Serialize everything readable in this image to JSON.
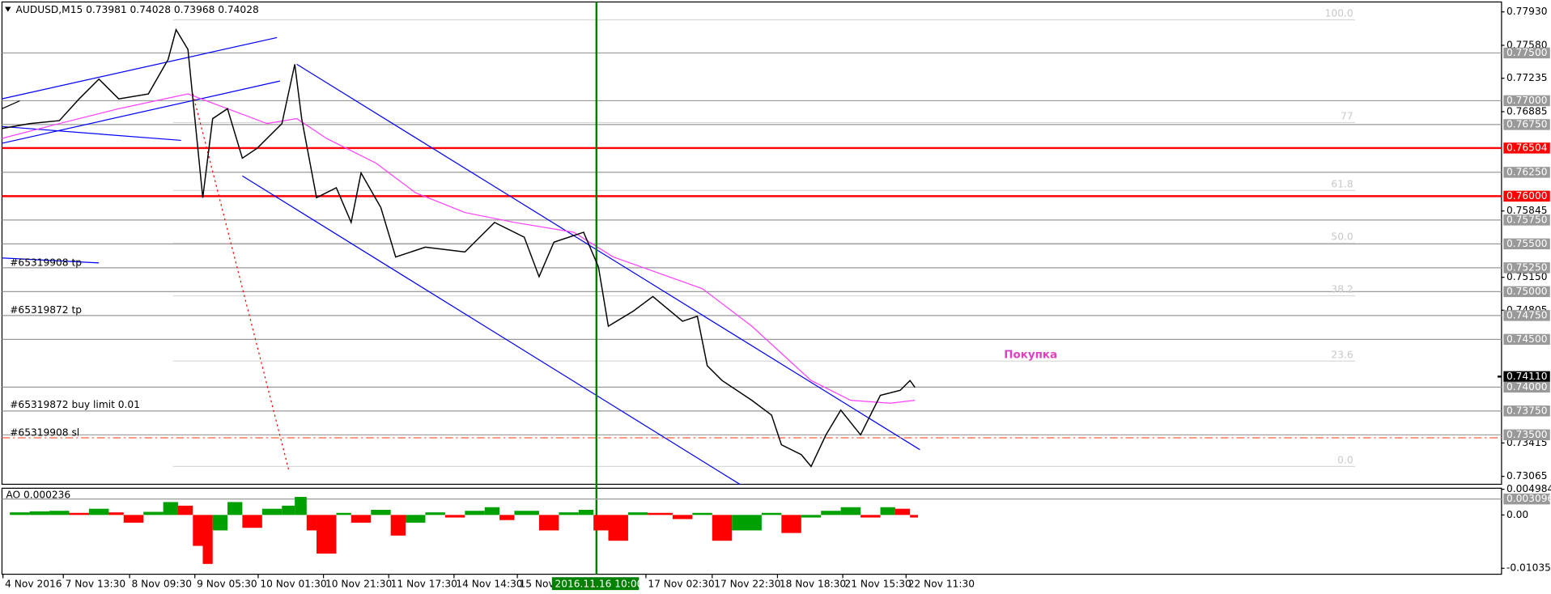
{
  "header": {
    "symbol": "AUDUSD,M15",
    "ohlc": [
      0.73981,
      0.74028,
      0.73968,
      0.74028
    ]
  },
  "price_axis": {
    "ylim": [
      0.72982,
      0.78034
    ],
    "ticks": [
      {
        "value": 0.7793,
        "label": "0.77930"
      },
      {
        "value": 0.7758,
        "label": "0.77580"
      },
      0.77235,
      0.76885,
      0.75845,
      {
        "value": 0.7515,
        "label": "0.75150"
      },
      0.74805,
      0.73415,
      0.73065
    ],
    "current": {
      "value": 0.7411,
      "label": "0.74110"
    }
  },
  "levels": [
    {
      "value": 0.775,
      "label": "0.77500",
      "color": "#999999"
    },
    {
      "value": 0.77,
      "label": "0.77000",
      "color": "#999999"
    },
    {
      "value": 0.7675,
      "label": "0.76750",
      "color": "#999999"
    },
    {
      "value": 0.76504,
      "label": "0.76504",
      "color": "#ff0000"
    },
    {
      "value": 0.7625,
      "label": "0.76250",
      "color": "#999999"
    },
    {
      "value": 0.76,
      "label": "0.76000",
      "color": "#ff0000"
    },
    {
      "value": 0.7575,
      "label": "0.75750",
      "color": "#999999"
    },
    {
      "value": 0.755,
      "label": "0.75500",
      "color": "#999999"
    },
    {
      "value": 0.7525,
      "label": "0.75250",
      "color": "#999999"
    },
    {
      "value": 0.75,
      "label": "0.75000",
      "color": "#999999"
    },
    {
      "value": 0.7475,
      "label": "0.74750",
      "color": "#999999"
    },
    {
      "value": 0.745,
      "label": "0.74500",
      "color": "#999999"
    },
    {
      "value": 0.74,
      "label": "0.74000",
      "color": "#999999"
    },
    {
      "value": 0.7375,
      "label": "0.73750",
      "color": "#999999"
    },
    {
      "value": 0.735,
      "label": "0.73500",
      "color": "#999999"
    }
  ],
  "fibo": {
    "high": 0.77847,
    "low": 0.73169,
    "levels": [
      {
        "value": 100,
        "label": "100.0"
      },
      77,
      {
        "value": 61.8,
        "label": "61.8"
      },
      {
        "value": 50,
        "label": "50.0"
      },
      {
        "value": 38.2,
        "label": "38.2"
      },
      {
        "value": 23.6,
        "label": "23.6"
      },
      {
        "value": 0,
        "label": "0.0"
      }
    ]
  },
  "price": {
    "x": [
      0,
      28,
      58,
      78,
      98,
      118,
      148,
      168,
      176,
      188,
      193,
      203,
      213,
      228,
      243,
      258,
      283,
      296,
      303,
      318,
      338,
      353,
      363,
      383,
      398,
      428,
      468,
      498,
      528,
      543,
      558,
      588,
      603,
      613,
      638,
      658,
      688,
      703,
      713,
      728,
      758,
      778,
      788,
      808,
      818,
      833,
      848,
      868,
      888,
      908,
      918,
      923
    ],
    "values": [
      0.76709,
      0.7676,
      0.76791,
      0.77019,
      0.77226,
      0.77019,
      0.77071,
      0.77433,
      0.77744,
      0.77537,
      0.77019,
      0.75984,
      0.76812,
      0.76916,
      0.76398,
      0.76502,
      0.7676,
      0.77381,
      0.76812,
      0.75984,
      0.76088,
      0.75725,
      0.76243,
      0.75881,
      0.75363,
      0.75466,
      0.75415,
      0.75725,
      0.7557,
      0.75156,
      0.75518,
      0.75622,
      0.75259,
      0.74638,
      0.74794,
      0.74949,
      0.7469,
      0.74742,
      0.74224,
      0.74069,
      0.73862,
      0.73707,
      0.73396,
      0.73293,
      0.73169,
      0.735,
      0.73759,
      0.735,
      0.73914,
      0.73966,
      0.74069,
      0.73997
    ]
  },
  "orders": [
    "#65319908 tp",
    "#65319872 tp",
    "#65319872 buy limit 0.01",
    "#65319908 sl"
  ],
  "annotation": "Покупка",
  "current_time": "2016.11.16 10:00",
  "time_axis": [
    "4 Nov 2016",
    "7 Nov 13:30",
    "8 Nov 09:30",
    "9 Nov 05:30",
    "10 Nov 01:30",
    "10 Nov 21:30",
    "11 Nov 17:30",
    "14 Nov 14:30",
    "15 Nov",
    "17 Nov 02:30",
    "17 Nov 22:30",
    "18 Nov 18:30",
    "21 Nov 15:30",
    "22 Nov 11:30"
  ],
  "ao": {
    "label": "AO 0.000236",
    "ylim": [
      -0.0115,
      0.00518
    ],
    "ticks": [
      0.004984,
      {
        "value": 0,
        "label": "0.00"
      },
      -0.01035
    ],
    "current": 0.003096,
    "up_color": "#00a000",
    "down_color": "#ff0000",
    "x": [
      8,
      28,
      48,
      68,
      88,
      108,
      123,
      143,
      163,
      178,
      193,
      203,
      213,
      228,
      243,
      263,
      283,
      296,
      308,
      318,
      338,
      353,
      373,
      393,
      408,
      428,
      448,
      468,
      488,
      503,
      518,
      543,
      563,
      583,
      598,
      613,
      633,
      653,
      678,
      698,
      718,
      738,
      768,
      788,
      808,
      828,
      848,
      868,
      888,
      903,
      918
    ],
    "values": [
      0.0005,
      0.0007,
      0.0008,
      0.0004,
      0.0012,
      0.0005,
      -0.0015,
      0.0006,
      0.0025,
      0.0018,
      -0.006,
      -0.0095,
      -0.003,
      0.0025,
      -0.0025,
      0.0012,
      0.0018,
      0.0035,
      -0.003,
      -0.0075,
      0.0004,
      -0.0015,
      0.001,
      -0.004,
      -0.0015,
      0.0005,
      -0.0005,
      0.0008,
      0.0015,
      -0.001,
      0.0008,
      -0.003,
      0.0005,
      0.001,
      -0.003,
      -0.005,
      0.0005,
      0.0004,
      -0.0008,
      0.0004,
      -0.005,
      -0.003,
      0.0004,
      -0.0035,
      -0.0005,
      0.0008,
      0.0015,
      -0.0005,
      0.0015,
      0.0012,
      -0.0005
    ]
  }
}
